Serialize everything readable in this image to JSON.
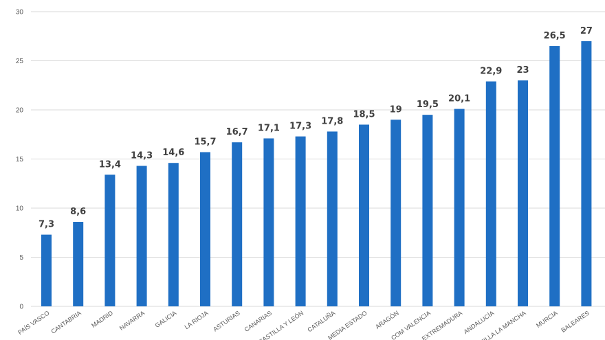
{
  "chart_data": {
    "type": "bar",
    "categories": [
      "PAÍS VASCO",
      "CANTABRIA",
      "MADRID",
      "NAVARRA",
      "GALICIA",
      "LA RIOJA",
      "ASTURIAS",
      "CANARIAS",
      "CASTILLA Y LEÓN",
      "CATALUÑA",
      "MEDIA ESTADO",
      "ARAGÓN",
      "COM VALENCIA",
      "EXTREMADURA",
      "ANDALUCÍA",
      "CASTILLA LA MANCHA",
      "MURCIA",
      "BALEARES"
    ],
    "values": [
      7.3,
      8.6,
      13.4,
      14.3,
      14.6,
      15.7,
      16.7,
      17.1,
      17.3,
      17.8,
      18.5,
      19,
      19.5,
      20.1,
      22.9,
      23,
      26.5,
      27
    ],
    "data_labels": [
      "7,3",
      "8,6",
      "13,4",
      "14,3",
      "14,6",
      "15,7",
      "16,7",
      "17,1",
      "17,3",
      "17,8",
      "18,5",
      "19",
      "19,5",
      "20,1",
      "22,9",
      "23",
      "26,5",
      "27"
    ],
    "yticks": [
      "0",
      "5",
      "10",
      "15",
      "20",
      "25",
      "30"
    ],
    "ylim": [
      0,
      30
    ],
    "grid": true,
    "legend": "none",
    "bar_color": "#1f6fc4"
  }
}
